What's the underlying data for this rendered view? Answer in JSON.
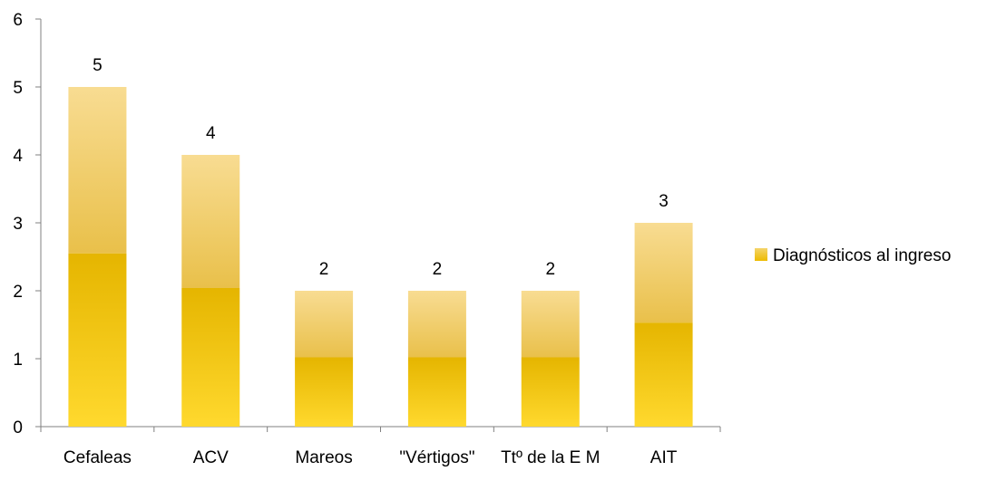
{
  "chart_data": {
    "type": "bar",
    "categories": [
      "Cefaleas",
      "ACV",
      "Mareos",
      "\"Vértigos\"",
      "Ttº de la E M",
      "AIT"
    ],
    "series": [
      {
        "name": "Diagnósticos al ingreso",
        "values": [
          5,
          4,
          2,
          2,
          2,
          3
        ]
      }
    ],
    "data_labels": [
      "5",
      "4",
      "2",
      "2",
      "2",
      "3"
    ],
    "y_ticks": [
      "0",
      "1",
      "2",
      "3",
      "4",
      "5",
      "6"
    ],
    "ylim": [
      0,
      6
    ],
    "grid": false,
    "legend_position": "right",
    "colors": {
      "bar_top": "#F7D98A",
      "bar_mid": "#E8BE3A",
      "bar_bottom": "#FCD72A",
      "legend_swatch": "#F2C200",
      "axis": "#808080"
    }
  }
}
